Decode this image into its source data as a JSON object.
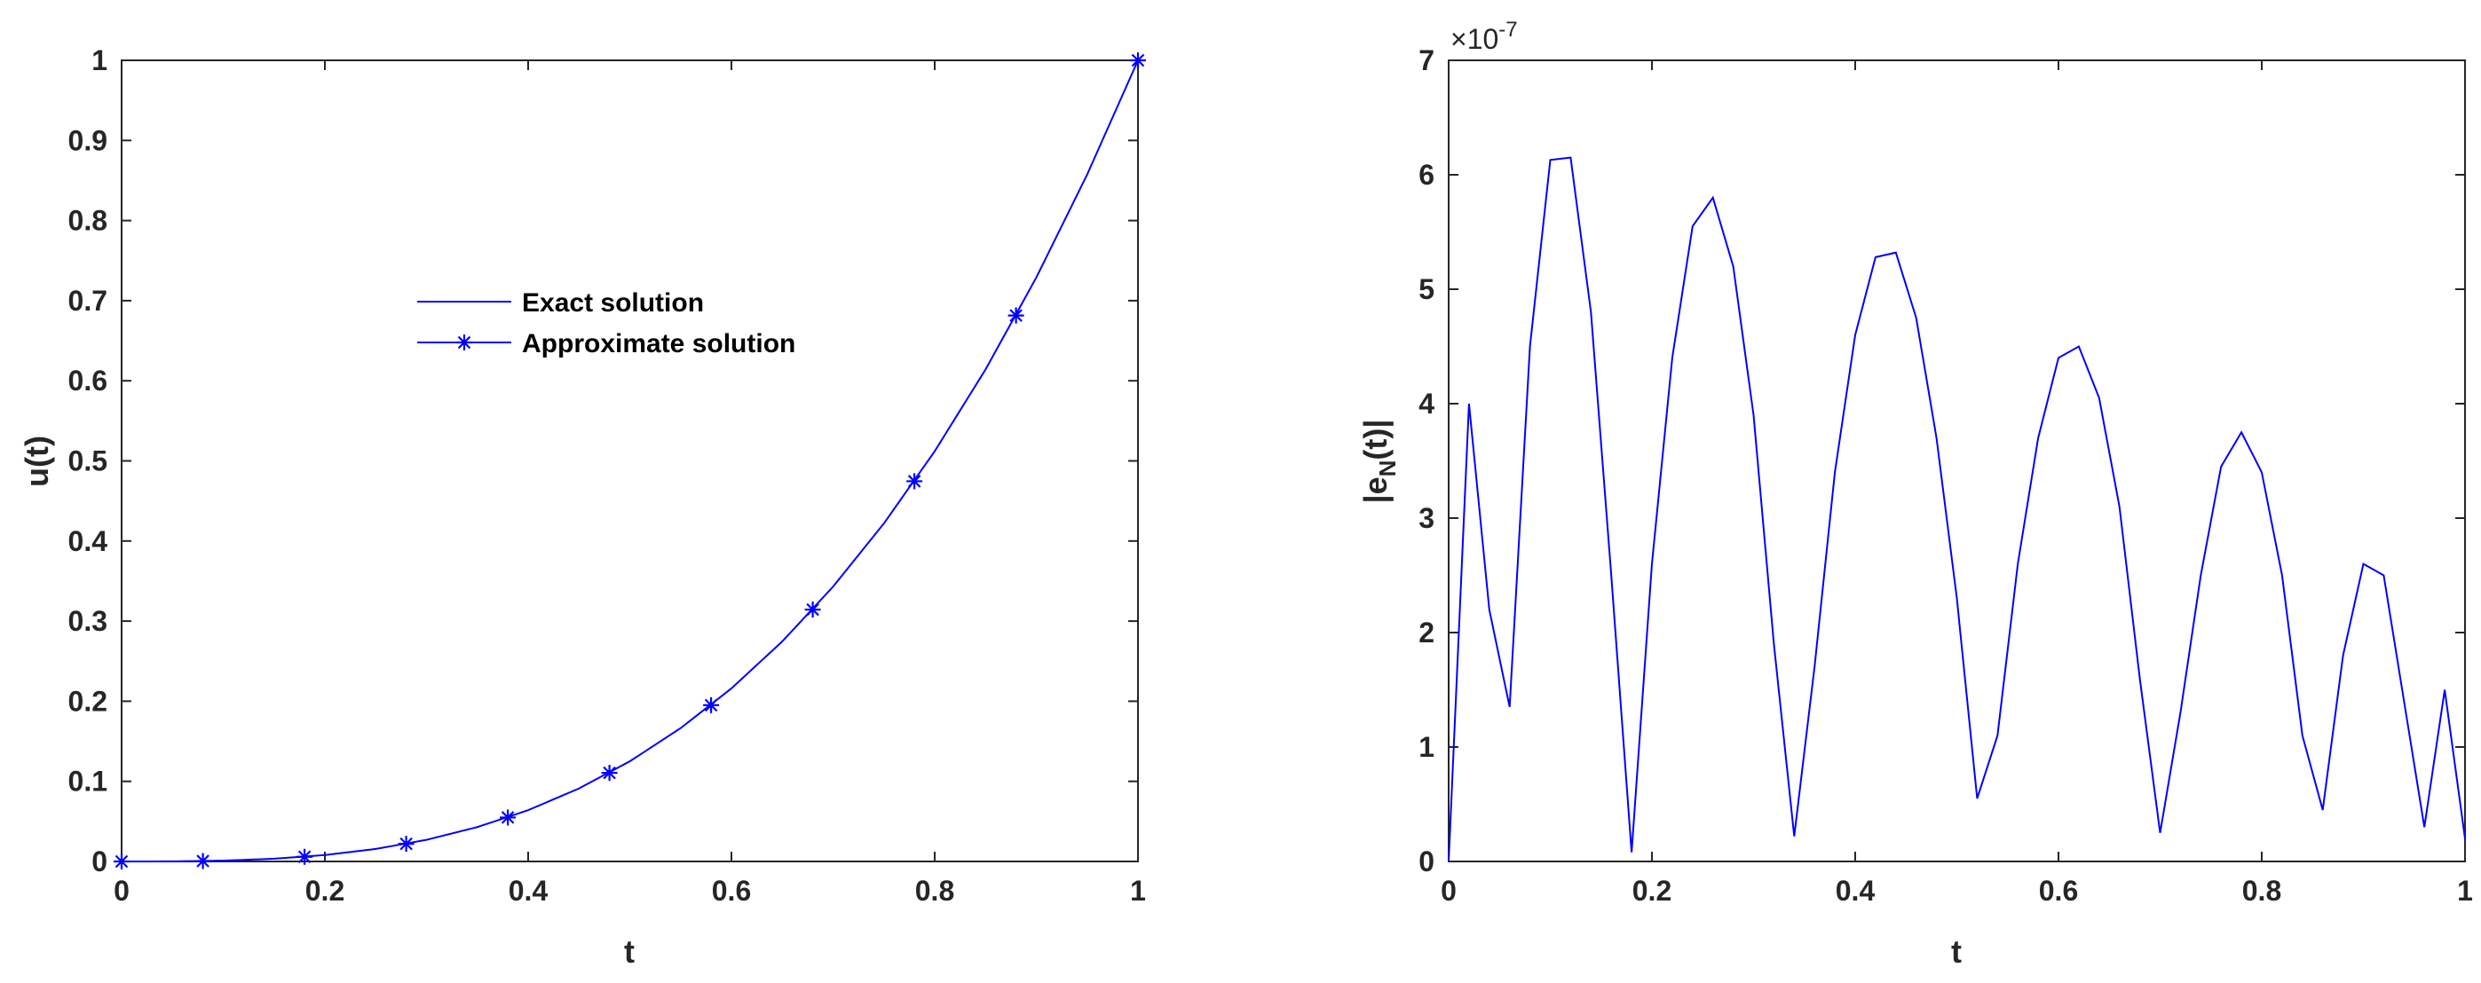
{
  "colors": {
    "series": "#0000ff",
    "axis": "#262626"
  },
  "chart_data": [
    {
      "type": "line",
      "xlabel": "t",
      "ylabel": "u(t)",
      "xlim": [
        0,
        1
      ],
      "ylim": [
        0,
        1
      ],
      "xticks": [
        "0",
        "0.2",
        "0.4",
        "0.6",
        "0.8",
        "1"
      ],
      "yticks": [
        "0",
        "0.1",
        "0.2",
        "0.3",
        "0.4",
        "0.5",
        "0.6",
        "0.7",
        "0.8",
        "0.9",
        "1"
      ],
      "legend": "center",
      "grid": false,
      "series": [
        {
          "name": "Exact solution",
          "style": "line",
          "x": [
            0,
            0.05,
            0.1,
            0.15,
            0.2,
            0.25,
            0.3,
            0.35,
            0.4,
            0.45,
            0.5,
            0.55,
            0.6,
            0.65,
            0.7,
            0.75,
            0.8,
            0.85,
            0.9,
            0.95,
            1
          ],
          "y": [
            0,
            0.0001,
            0.001,
            0.0034,
            0.008,
            0.0156,
            0.027,
            0.0429,
            0.064,
            0.0911,
            0.125,
            0.1664,
            0.216,
            0.2746,
            0.343,
            0.4219,
            0.512,
            0.6141,
            0.729,
            0.8574,
            1
          ]
        },
        {
          "name": "Approximate solution",
          "style": "markers",
          "marker": "*",
          "x": [
            0,
            0.08,
            0.18,
            0.28,
            0.38,
            0.48,
            0.58,
            0.68,
            0.78,
            0.88,
            1
          ],
          "y": [
            0,
            0.0005,
            0.0058,
            0.022,
            0.0549,
            0.1106,
            0.1951,
            0.3144,
            0.4746,
            0.6815,
            1
          ]
        }
      ]
    },
    {
      "type": "line",
      "xlabel": "t",
      "ylabel_main": "|e",
      "ylabel_sub": "N",
      "ylabel_tail": "(t)|",
      "exponent_base": "×10",
      "exponent_power": "-7",
      "xlim": [
        0,
        1
      ],
      "ylim": [
        0,
        7
      ],
      "xticks": [
        "0",
        "0.2",
        "0.4",
        "0.6",
        "0.8",
        "1"
      ],
      "yticks": [
        "0",
        "1",
        "2",
        "3",
        "4",
        "5",
        "6",
        "7"
      ],
      "grid": false,
      "series": [
        {
          "style": "line",
          "x": [
            0,
            0.02,
            0.04,
            0.06,
            0.08,
            0.1,
            0.12,
            0.14,
            0.16,
            0.18,
            0.2,
            0.22,
            0.24,
            0.26,
            0.28,
            0.3,
            0.32,
            0.34,
            0.36,
            0.38,
            0.4,
            0.42,
            0.44,
            0.46,
            0.48,
            0.5,
            0.52,
            0.54,
            0.56,
            0.58,
            0.6,
            0.62,
            0.64,
            0.66,
            0.68,
            0.7,
            0.72,
            0.74,
            0.76,
            0.78,
            0.8,
            0.82,
            0.84,
            0.86,
            0.88,
            0.9,
            0.92,
            0.94,
            0.96,
            0.98,
            1
          ],
          "y": [
            0,
            4.0,
            2.2,
            1.35,
            4.5,
            6.13,
            6.15,
            4.8,
            2.5,
            0.08,
            2.6,
            4.4,
            5.55,
            5.8,
            5.2,
            3.9,
            1.9,
            0.22,
            1.7,
            3.4,
            4.6,
            5.28,
            5.32,
            4.75,
            3.7,
            2.3,
            0.55,
            1.1,
            2.6,
            3.7,
            4.4,
            4.5,
            4.05,
            3.1,
            1.6,
            0.25,
            1.3,
            2.5,
            3.45,
            3.75,
            3.4,
            2.5,
            1.1,
            0.45,
            1.8,
            2.6,
            2.5,
            1.4,
            0.3,
            1.5,
            0.2
          ]
        }
      ]
    }
  ]
}
